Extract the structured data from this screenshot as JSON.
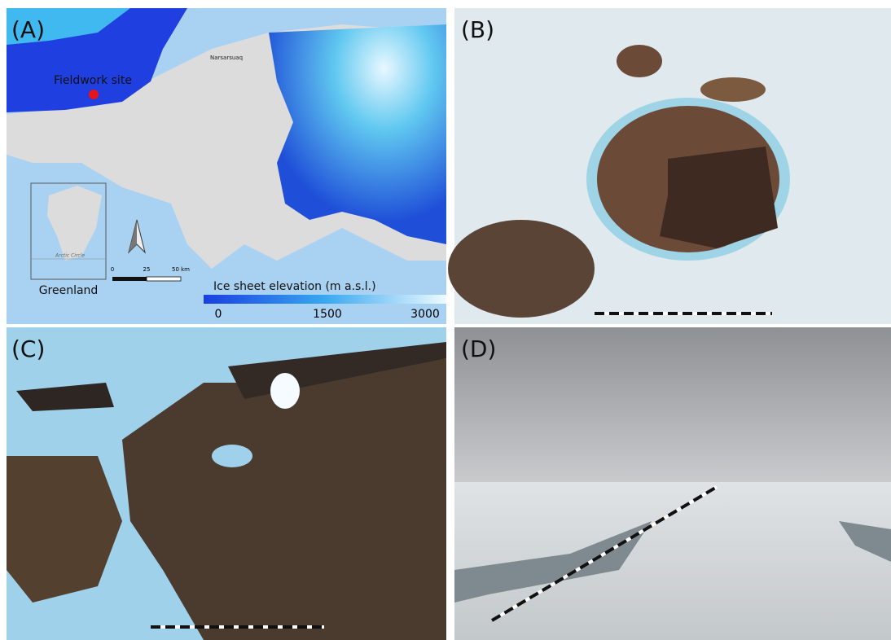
{
  "panels": [
    {
      "label": "(A)"
    },
    {
      "label": "(B)"
    },
    {
      "label": "(C)"
    },
    {
      "label": "(D)"
    }
  ],
  "map": {
    "site": "Fieldwork site",
    "town": "Narsarsuaq",
    "inset_title": "Greenland",
    "inset_line": "Arctic Circle",
    "scale_labels": [
      "0",
      "25",
      "50 km"
    ],
    "colorbar": {
      "title": "Ice sheet elevation (m a.s.l.)",
      "ticks": [
        "0",
        "1500",
        "3000"
      ]
    }
  }
}
